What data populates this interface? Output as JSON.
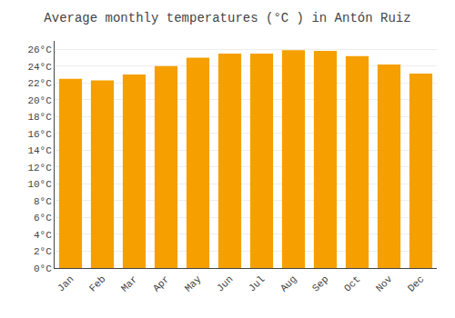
{
  "chart_data": {
    "type": "bar",
    "title": "Average monthly temperatures (°C ) in Antón Ruiz",
    "categories": [
      "Jan",
      "Feb",
      "Mar",
      "Apr",
      "May",
      "Jun",
      "Jul",
      "Aug",
      "Sep",
      "Oct",
      "Nov",
      "Dec"
    ],
    "values": [
      22.5,
      22.3,
      23.0,
      24.0,
      25.0,
      25.5,
      25.5,
      25.9,
      25.8,
      25.2,
      24.2,
      23.1
    ],
    "color": "#F5A000",
    "ylim": [
      0,
      27
    ],
    "yticks": [
      {
        "value": 0,
        "label": "0°C"
      },
      {
        "value": 2,
        "label": "2°C"
      },
      {
        "value": 4,
        "label": "4°C"
      },
      {
        "value": 6,
        "label": "6°C"
      },
      {
        "value": 8,
        "label": "8°C"
      },
      {
        "value": 10,
        "label": "10°C"
      },
      {
        "value": 12,
        "label": "12°C"
      },
      {
        "value": 14,
        "label": "14°C"
      },
      {
        "value": 16,
        "label": "16°C"
      },
      {
        "value": 18,
        "label": "18°C"
      },
      {
        "value": 20,
        "label": "20°C"
      },
      {
        "value": 22,
        "label": "22°C"
      },
      {
        "value": 24,
        "label": "24°C"
      },
      {
        "value": 26,
        "label": "26°C"
      }
    ],
    "grid": true
  }
}
